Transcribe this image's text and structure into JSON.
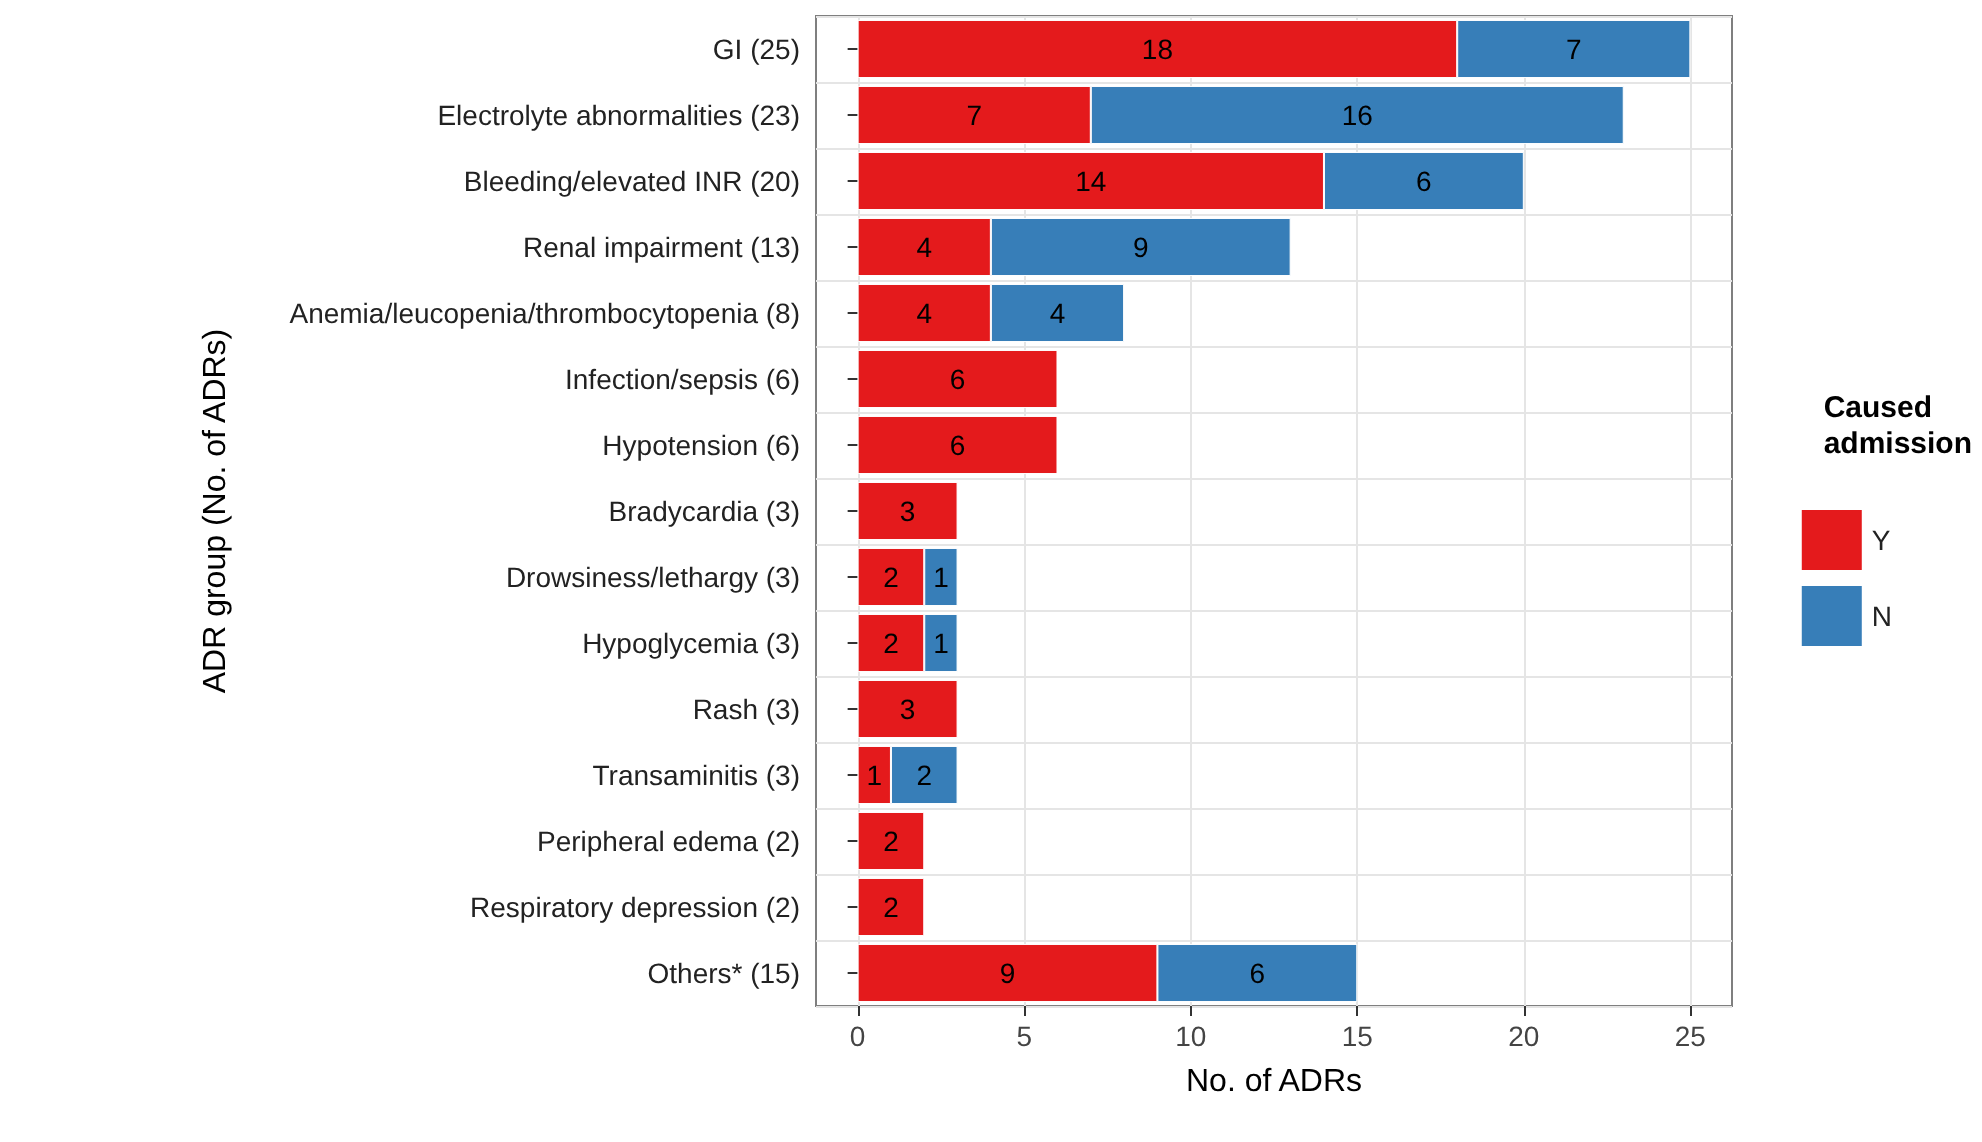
{
  "chart_data": {
    "type": "bar",
    "orientation": "horizontal",
    "stacked": true,
    "xlabel": "No. of ADRs",
    "ylabel": "ADR group (No. of ADRs)",
    "legend_title": "Caused\nadmission",
    "legend": "right",
    "grid": true,
    "data_labels": true,
    "categories": [
      "GI (25)",
      "Electrolyte abnormalities (23)",
      "Bleeding/elevated INR (20)",
      "Renal impairment (13)",
      "Anemia/leucopenia/thrombocytopenia (8)",
      "Infection/sepsis (6)",
      "Hypotension (6)",
      "Bradycardia (3)",
      "Drowsiness/lethargy (3)",
      "Hypoglycemia (3)",
      "Rash (3)",
      "Transaminitis (3)",
      "Peripheral edema (2)",
      "Respiratory depression (2)",
      "Others* (15)"
    ],
    "series": [
      {
        "name": "Y",
        "color": "#e41a1c",
        "values": [
          18,
          7,
          14,
          4,
          4,
          6,
          6,
          3,
          2,
          2,
          3,
          1,
          2,
          2,
          9
        ]
      },
      {
        "name": "N",
        "color": "#377eb8",
        "values": [
          7,
          16,
          6,
          9,
          4,
          null,
          null,
          null,
          1,
          1,
          null,
          2,
          null,
          null,
          6
        ]
      }
    ],
    "xlim": [
      -1.25,
      26.25
    ],
    "xticks": [
      0,
      5,
      10,
      15,
      20,
      25
    ]
  }
}
